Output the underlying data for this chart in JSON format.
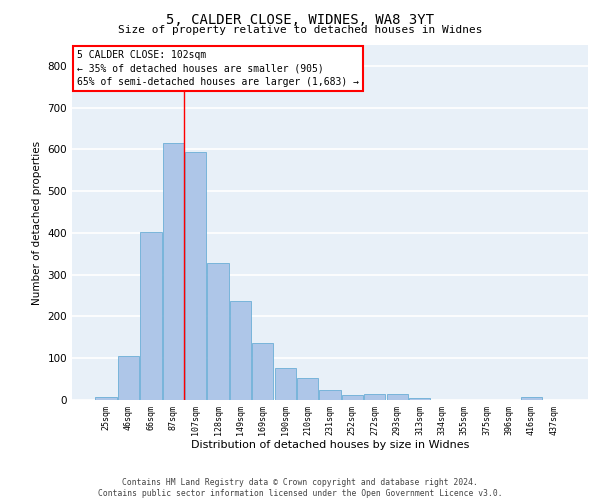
{
  "title_line1": "5, CALDER CLOSE, WIDNES, WA8 3YT",
  "title_line2": "Size of property relative to detached houses in Widnes",
  "xlabel": "Distribution of detached houses by size in Widnes",
  "ylabel": "Number of detached properties",
  "categories": [
    "25sqm",
    "46sqm",
    "66sqm",
    "87sqm",
    "107sqm",
    "128sqm",
    "149sqm",
    "169sqm",
    "190sqm",
    "210sqm",
    "231sqm",
    "252sqm",
    "272sqm",
    "293sqm",
    "313sqm",
    "334sqm",
    "355sqm",
    "375sqm",
    "396sqm",
    "416sqm",
    "437sqm"
  ],
  "values": [
    7,
    105,
    403,
    615,
    593,
    328,
    236,
    137,
    76,
    53,
    25,
    12,
    15,
    15,
    5,
    0,
    0,
    0,
    0,
    7,
    0
  ],
  "bar_color": "#aec6e8",
  "bar_edge_color": "#6baed6",
  "background_color": "#e8f0f8",
  "grid_color": "#ffffff",
  "vline_color": "red",
  "vline_position": 3.5,
  "annotation_text": "5 CALDER CLOSE: 102sqm\n← 35% of detached houses are smaller (905)\n65% of semi-detached houses are larger (1,683) →",
  "annotation_box_color": "white",
  "annotation_box_edge_color": "red",
  "ylim": [
    0,
    850
  ],
  "yticks": [
    0,
    100,
    200,
    300,
    400,
    500,
    600,
    700,
    800
  ],
  "footer_line1": "Contains HM Land Registry data © Crown copyright and database right 2024.",
  "footer_line2": "Contains public sector information licensed under the Open Government Licence v3.0."
}
